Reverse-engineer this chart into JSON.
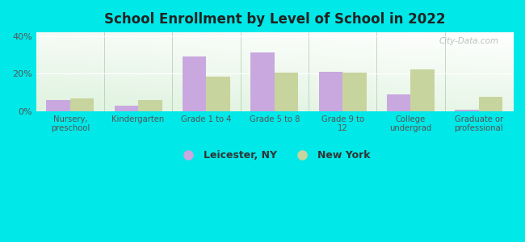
{
  "title": "School Enrollment by Level of School in 2022",
  "categories": [
    "Nursery,\npreschool",
    "Kindergarten",
    "Grade 1 to 4",
    "Grade 5 to 8",
    "Grade 9 to\n12",
    "College\nundergrad",
    "Graduate or\nprofessional"
  ],
  "leicester": [
    6.0,
    3.0,
    29.0,
    31.5,
    21.0,
    9.0,
    1.0
  ],
  "newyork": [
    7.0,
    6.0,
    18.5,
    20.5,
    20.5,
    22.5,
    7.5
  ],
  "leicester_color": "#c9a8df",
  "newyork_color": "#c8d49e",
  "background_outer": "#00e8e8",
  "ylim": [
    0,
    42
  ],
  "yticks": [
    0,
    20,
    40
  ],
  "ytick_labels": [
    "0%",
    "20%",
    "40%"
  ],
  "bar_width": 0.35,
  "legend_leicester": "Leicester, NY",
  "legend_newyork": "New York",
  "watermark": "City-Data.com"
}
